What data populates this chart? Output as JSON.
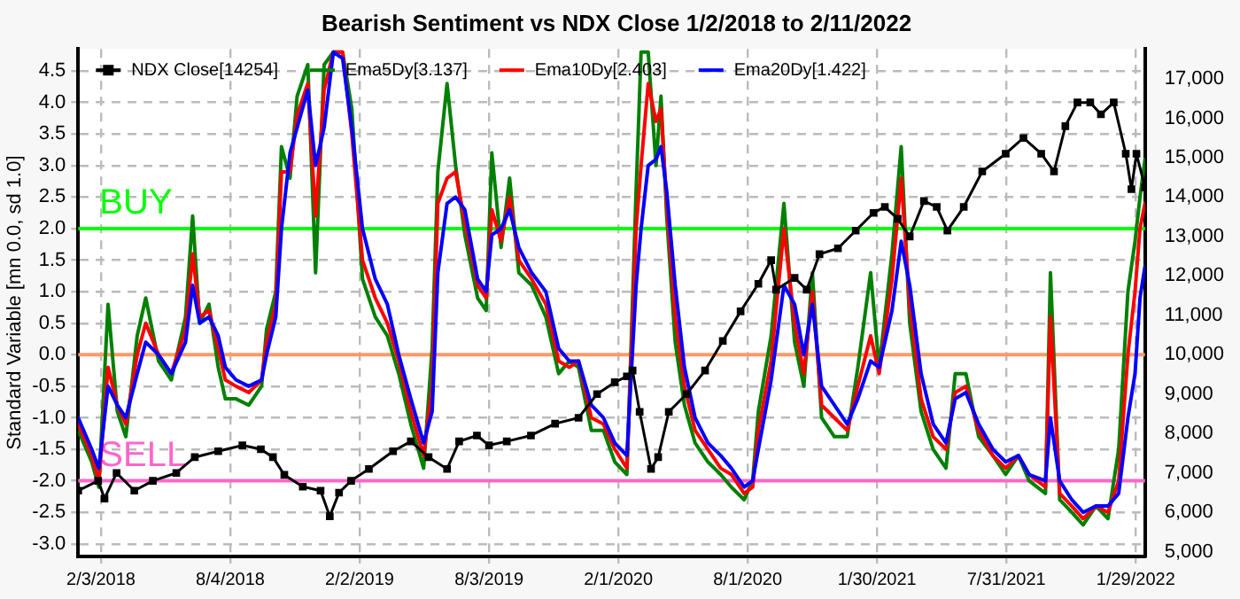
{
  "chart_data": {
    "type": "line",
    "title": "Bearish Sentiment vs NDX Close 1/2/2018 to 2/11/2022",
    "ylabel": "Standard Variable [mn 0.0, sd 1.0]",
    "x": [
      "2018-01-02",
      "2018-01-21",
      "2018-01-31",
      "2018-02-13",
      "2018-02-26",
      "2018-03-10",
      "2018-03-26",
      "2018-04-07",
      "2018-04-25",
      "2018-05-13",
      "2018-06-02",
      "2018-06-12",
      "2018-06-22",
      "2018-07-05",
      "2018-07-18",
      "2018-07-28",
      "2018-08-12",
      "2018-08-30",
      "2018-09-17",
      "2018-09-24",
      "2018-10-07",
      "2018-10-15",
      "2018-10-27",
      "2018-11-06",
      "2018-11-21",
      "2018-12-02",
      "2018-12-14",
      "2018-12-27",
      "2019-01-09",
      "2019-01-22",
      "2019-02-06",
      "2019-02-24",
      "2019-03-13",
      "2019-03-29",
      "2019-04-15",
      "2019-05-03",
      "2019-05-15",
      "2019-05-23",
      "2019-06-05",
      "2019-06-17",
      "2019-06-30",
      "2019-07-18",
      "2019-07-30",
      "2019-08-07",
      "2019-08-20",
      "2019-09-01",
      "2019-09-14",
      "2019-10-02",
      "2019-10-22",
      "2019-11-09",
      "2019-11-24",
      "2019-12-07",
      "2019-12-25",
      "2020-01-11",
      "2020-01-27",
      "2020-02-13",
      "2020-02-26",
      "2020-03-04",
      "2020-03-14",
      "2020-03-25",
      "2020-04-01",
      "2020-04-09",
      "2020-04-21",
      "2020-05-04",
      "2020-05-19",
      "2020-06-06",
      "2020-06-24",
      "2020-07-09",
      "2020-07-27",
      "2020-08-08",
      "2020-08-16",
      "2020-09-03",
      "2020-09-21",
      "2020-10-06",
      "2020-10-19",
      "2020-10-31",
      "2020-11-13",
      "2020-12-01",
      "2020-12-19",
      "2021-01-03",
      "2021-01-21",
      "2021-02-02",
      "2021-02-20",
      "2021-03-05",
      "2021-03-17",
      "2021-04-02",
      "2021-04-19",
      "2021-05-07",
      "2021-05-20",
      "2021-06-04",
      "2021-06-22",
      "2021-07-12",
      "2021-07-30",
      "2021-08-17",
      "2021-09-01",
      "2021-09-24",
      "2021-10-01",
      "2021-10-14",
      "2021-10-31",
      "2021-11-16",
      "2021-12-04",
      "2021-12-21",
      "2022-01-05",
      "2022-01-18",
      "2022-01-28",
      "2022-02-04",
      "2022-02-11"
    ],
    "series": [
      {
        "name": "NDX Close[14254]",
        "color": "#000000",
        "axis": "y2",
        "marker": "square",
        "x": [
          "2018-01-02",
          "2018-01-30",
          "2018-02-08",
          "2018-02-25",
          "2018-03-22",
          "2018-04-17",
          "2018-05-20",
          "2018-06-15",
          "2018-07-18",
          "2018-08-21",
          "2018-09-16",
          "2018-10-03",
          "2018-10-19",
          "2018-11-14",
          "2018-12-09",
          "2018-12-22",
          "2019-01-04",
          "2019-01-21",
          "2019-02-15",
          "2019-03-21",
          "2019-04-15",
          "2019-05-10",
          "2019-06-05",
          "2019-06-22",
          "2019-07-17",
          "2019-08-03",
          "2019-08-28",
          "2019-10-01",
          "2019-11-04",
          "2019-12-07",
          "2020-01-02",
          "2020-01-27",
          "2020-02-13",
          "2020-02-21",
          "2020-03-02",
          "2020-03-18",
          "2020-03-28",
          "2020-04-12",
          "2020-05-07",
          "2020-06-02",
          "2020-06-27",
          "2020-07-22",
          "2020-08-16",
          "2020-09-03",
          "2020-09-10",
          "2020-10-06",
          "2020-10-23",
          "2020-11-10",
          "2020-12-06",
          "2020-12-31",
          "2021-01-25",
          "2021-02-10",
          "2021-02-28",
          "2021-03-17",
          "2021-04-06",
          "2021-04-24",
          "2021-05-09",
          "2021-06-01",
          "2021-06-27",
          "2021-07-30",
          "2021-08-24",
          "2021-09-18",
          "2021-10-06",
          "2021-10-22",
          "2021-11-08",
          "2021-11-26",
          "2021-12-11",
          "2021-12-29",
          "2022-01-15",
          "2022-01-23",
          "2022-01-30",
          "2022-02-11"
        ],
        "values": [
          6550,
          6800,
          6350,
          7000,
          6550,
          6800,
          7000,
          7400,
          7550,
          7700,
          7600,
          7400,
          6950,
          6650,
          6550,
          5900,
          6500,
          6800,
          7100,
          7550,
          7800,
          7400,
          7100,
          7800,
          7950,
          7700,
          7800,
          7950,
          8250,
          8400,
          9000,
          9300,
          9450,
          9600,
          8550,
          7100,
          7400,
          8550,
          9000,
          9600,
          10350,
          11100,
          11800,
          12400,
          11650,
          11950,
          11650,
          12550,
          12700,
          13150,
          13600,
          13750,
          13450,
          13000,
          13900,
          13750,
          13150,
          13750,
          14650,
          15100,
          15500,
          15100,
          14650,
          15800,
          16400,
          16400,
          16100,
          16400,
          15100,
          14200,
          15100,
          14250
        ]
      },
      {
        "name": "Ema5Dy[3.137]",
        "color": "#008000",
        "values": [
          -1.2,
          -1.7,
          -2.1,
          0.8,
          -0.9,
          -1.3,
          0.3,
          0.9,
          -0.1,
          -0.4,
          0.6,
          2.2,
          0.5,
          0.8,
          -0.2,
          -0.7,
          -0.7,
          -0.8,
          -0.5,
          0.4,
          1.0,
          3.3,
          2.8,
          4.1,
          4.6,
          1.3,
          4.6,
          4.8,
          4.8,
          3.9,
          1.2,
          0.6,
          0.3,
          -0.3,
          -1.1,
          -1.8,
          0.1,
          2.9,
          4.3,
          3.0,
          1.9,
          0.9,
          0.7,
          3.2,
          1.7,
          2.8,
          1.3,
          1.1,
          0.6,
          -0.3,
          -0.1,
          -0.2,
          -1.2,
          -1.2,
          -1.7,
          -1.9,
          2.6,
          4.8,
          4.8,
          3.0,
          4.1,
          2.2,
          0.2,
          -0.8,
          -1.4,
          -1.7,
          -1.9,
          -2.1,
          -2.3,
          -2.0,
          -0.9,
          0.3,
          2.4,
          0.2,
          -0.5,
          1.3,
          -1.0,
          -1.3,
          -1.3,
          -0.2,
          1.3,
          -0.2,
          1.6,
          3.3,
          0.5,
          -0.9,
          -1.5,
          -1.8,
          -0.3,
          -0.3,
          -1.3,
          -1.6,
          -1.9,
          -1.6,
          -2.0,
          -2.2,
          1.3,
          -2.3,
          -2.5,
          -2.7,
          -2.4,
          -2.6,
          -1.5,
          1.0,
          1.8,
          2.5,
          3.1
        ]
      },
      {
        "name": "Ema10Dy[2.403]",
        "color": "#ff0000",
        "values": [
          -1.1,
          -1.6,
          -2.0,
          -0.2,
          -0.8,
          -1.1,
          0.0,
          0.5,
          0.0,
          -0.3,
          0.4,
          1.6,
          0.6,
          0.7,
          0.1,
          -0.4,
          -0.5,
          -0.6,
          -0.4,
          0.2,
          0.8,
          2.9,
          2.9,
          3.8,
          4.3,
          2.2,
          4.2,
          4.8,
          4.8,
          3.5,
          1.5,
          0.9,
          0.5,
          -0.1,
          -0.9,
          -1.6,
          -0.5,
          2.4,
          2.8,
          2.9,
          2.1,
          1.1,
          0.9,
          2.3,
          1.8,
          2.5,
          1.5,
          1.2,
          0.8,
          -0.1,
          -0.2,
          -0.1,
          -1.0,
          -1.1,
          -1.5,
          -1.8,
          2.0,
          3.0,
          4.3,
          3.7,
          3.9,
          2.4,
          0.6,
          -0.5,
          -1.2,
          -1.5,
          -1.8,
          -1.9,
          -2.2,
          -2.1,
          -1.2,
          -0.1,
          2.0,
          0.5,
          -0.3,
          1.0,
          -0.8,
          -1.0,
          -1.2,
          -0.5,
          0.3,
          -0.3,
          1.2,
          2.8,
          0.8,
          -0.7,
          -1.3,
          -1.5,
          -0.6,
          -0.5,
          -1.2,
          -1.6,
          -1.8,
          -1.6,
          -1.9,
          -2.1,
          0.6,
          -2.2,
          -2.4,
          -2.6,
          -2.4,
          -2.5,
          -2.0,
          0.0,
          1.0,
          2.0,
          2.4
        ]
      },
      {
        "name": "Ema20Dy[1.422]",
        "color": "#0000ff",
        "values": [
          -1.0,
          -1.5,
          -1.8,
          -0.5,
          -0.8,
          -1.0,
          -0.3,
          0.2,
          0.0,
          -0.3,
          0.2,
          1.1,
          0.5,
          0.6,
          0.3,
          -0.2,
          -0.4,
          -0.5,
          -0.4,
          0.0,
          0.6,
          2.0,
          3.2,
          3.6,
          4.2,
          3.0,
          3.6,
          4.8,
          4.7,
          3.6,
          2.0,
          1.2,
          0.8,
          0.0,
          -0.7,
          -1.4,
          -0.9,
          1.3,
          2.4,
          2.5,
          2.3,
          1.2,
          1.0,
          1.9,
          2.0,
          2.3,
          1.7,
          1.3,
          1.0,
          0.1,
          -0.1,
          -0.1,
          -0.8,
          -1.0,
          -1.4,
          -1.6,
          1.1,
          2.0,
          3.0,
          3.1,
          3.3,
          2.6,
          1.1,
          -0.2,
          -1.0,
          -1.4,
          -1.6,
          -1.8,
          -2.1,
          -2.0,
          -1.5,
          -0.4,
          1.1,
          0.8,
          0.0,
          0.8,
          -0.5,
          -0.8,
          -1.1,
          -0.7,
          -0.1,
          -0.2,
          0.7,
          1.8,
          1.1,
          -0.3,
          -1.1,
          -1.4,
          -0.7,
          -0.6,
          -1.1,
          -1.5,
          -1.7,
          -1.6,
          -1.9,
          -2.0,
          -1.0,
          -2.0,
          -2.3,
          -2.5,
          -2.4,
          -2.4,
          -2.2,
          -1.0,
          -0.3,
          0.9,
          1.4
        ]
      }
    ],
    "xlim": [
      "2018-01-02",
      "2022-02-11"
    ],
    "xticks": [
      {
        "value": "2018-02-03",
        "label": "2/3/2018"
      },
      {
        "value": "2018-08-04",
        "label": "8/4/2018"
      },
      {
        "value": "2019-02-02",
        "label": "2/2/2019"
      },
      {
        "value": "2019-08-03",
        "label": "8/3/2019"
      },
      {
        "value": "2020-02-01",
        "label": "2/1/2020"
      },
      {
        "value": "2020-08-01",
        "label": "8/1/2020"
      },
      {
        "value": "2021-01-30",
        "label": "1/30/2021"
      },
      {
        "value": "2021-07-31",
        "label": "7/31/2021"
      },
      {
        "value": "2022-01-29",
        "label": "1/29/2022"
      }
    ],
    "ylim": [
      -3.2,
      4.85
    ],
    "yticks": [
      {
        "value": -3,
        "label": "-3.0"
      },
      -2.5,
      {
        "value": -2,
        "label": "-2.0"
      },
      -1.5,
      {
        "value": -1,
        "label": "-1.0"
      },
      -0.5,
      {
        "value": 0,
        "label": "0.0"
      },
      0.5,
      {
        "value": 1,
        "label": "1.0"
      },
      1.5,
      {
        "value": 2,
        "label": "2.0"
      },
      2.5,
      {
        "value": 3,
        "label": "3.0"
      },
      3.5,
      {
        "value": 4,
        "label": "4.0"
      },
      4.5
    ],
    "y2lim": [
      4880,
      17760
    ],
    "y2ticks": [
      {
        "value": 5000,
        "label": "5,000"
      },
      {
        "value": 6000,
        "label": "6,000"
      },
      {
        "value": 7000,
        "label": "7,000"
      },
      {
        "value": 8000,
        "label": "8,000"
      },
      {
        "value": 9000,
        "label": "9,000"
      },
      {
        "value": 10000,
        "label": "10,000"
      },
      {
        "value": 11000,
        "label": "11,000"
      },
      {
        "value": 12000,
        "label": "12,000"
      },
      {
        "value": 13000,
        "label": "13,000"
      },
      {
        "value": 14000,
        "label": "14,000"
      },
      {
        "value": 15000,
        "label": "15,000"
      },
      {
        "value": 16000,
        "label": "16,000"
      },
      {
        "value": 17000,
        "label": "17,000"
      }
    ],
    "ref_lines": [
      {
        "axis": "y",
        "value": 2,
        "label": "BUY",
        "color": "#00ff00"
      },
      {
        "axis": "y",
        "value": 0,
        "label": null,
        "color": "#ff9966"
      },
      {
        "axis": "y",
        "value": -2,
        "label": "SELL",
        "color": "#ff66cc"
      }
    ],
    "grid": true,
    "legend": "top left",
    "marker": "none",
    "line_style": "solid"
  }
}
